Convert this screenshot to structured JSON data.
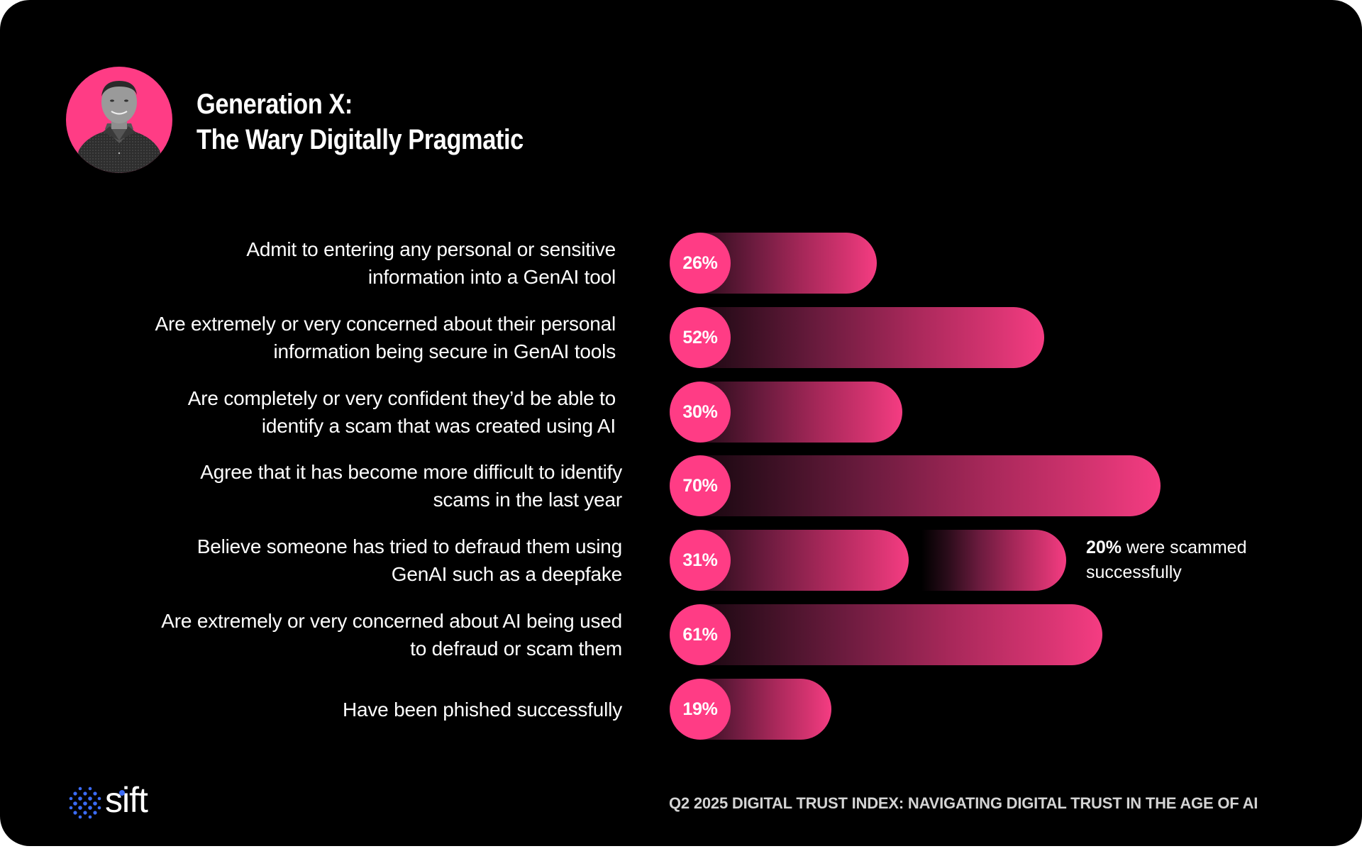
{
  "header": {
    "title_line1": "Generation X:",
    "title_line2": "The Wary Digitally Pragmatic",
    "avatar": "person-portrait"
  },
  "colors": {
    "accent": "#FF3C85",
    "background": "#000000",
    "text": "#FFFFFF",
    "footer_text": "#D4D4D4",
    "logo_blue": "#3B6BF5"
  },
  "chart_data": {
    "type": "bar",
    "orientation": "horizontal",
    "title": "Generation X: The Wary Digitally Pragmatic",
    "unit": "%",
    "categories": [
      [
        "Admit to entering any personal or sensitive",
        "information into a GenAI tool"
      ],
      [
        "Are extremely or very concerned about their personal",
        "information being secure in GenAI tools"
      ],
      [
        "Are completely or very confident they’d be able to",
        "identify a scam that was created using AI"
      ],
      [
        "Agree that it has become more difficult to identify",
        "scams in the last year"
      ],
      [
        "Believe someone has tried to defraud them using",
        "GenAI such as a deepfake"
      ],
      [
        "Are extremely or very concerned about AI being used",
        "to defraud or scam them"
      ],
      [
        "Have been phished successfully"
      ]
    ],
    "values": [
      26,
      52,
      30,
      70,
      31,
      61,
      19
    ],
    "value_labels": [
      "26%",
      "52%",
      "30%",
      "70%",
      "31%",
      "61%",
      "19%"
    ],
    "sub_bar": {
      "row": 4,
      "value": 20,
      "value_label": "20%",
      "annotation": "were scammed",
      "annotation_line2": "successfully"
    }
  },
  "footer": {
    "logo_text": "sift",
    "report_title": "Q2 2025 DIGITAL TRUST INDEX: NAVIGATING DIGITAL TRUST IN THE AGE OF AI"
  }
}
